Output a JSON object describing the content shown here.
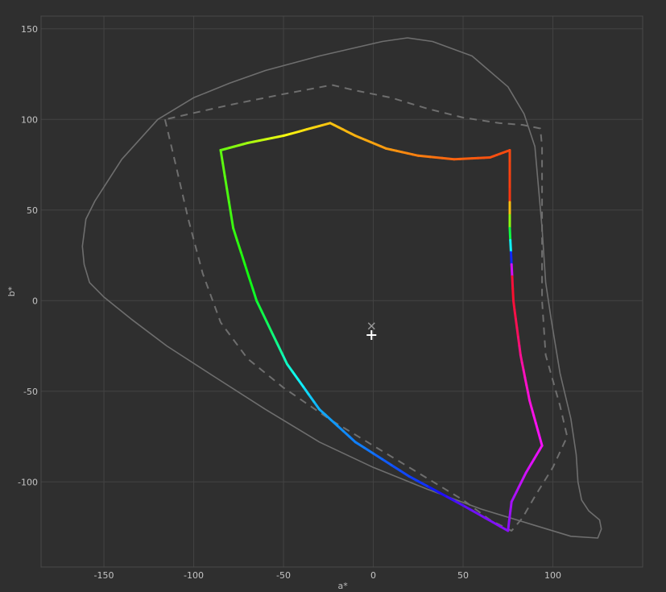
{
  "chart_data": {
    "type": "line",
    "title": "",
    "xlabel": "a*",
    "ylabel": "b*",
    "xlim": [
      -185,
      150
    ],
    "ylim": [
      -147,
      157
    ],
    "xticks": [
      -150,
      -100,
      -50,
      0,
      50,
      100
    ],
    "yticks": [
      150,
      100,
      50,
      0,
      -50,
      -100
    ],
    "grid": true,
    "colors": {
      "background": "#2f2f2f",
      "grid": "#434343",
      "frame": "#4a4a4a",
      "outline": "#6e6e6e",
      "marker": "#ffffff"
    },
    "series": [
      {
        "style": "solid-thin",
        "closed": true,
        "points": [
          [
            -161,
            20
          ],
          [
            -158,
            10
          ],
          [
            -150,
            2
          ],
          [
            -135,
            -10
          ],
          [
            -115,
            -25
          ],
          [
            -90,
            -41
          ],
          [
            -60,
            -60
          ],
          [
            -30,
            -78
          ],
          [
            0,
            -92
          ],
          [
            30,
            -104
          ],
          [
            60,
            -115
          ],
          [
            90,
            -124
          ],
          [
            110,
            -130
          ],
          [
            125,
            -131
          ],
          [
            127,
            -126
          ],
          [
            126,
            -121
          ],
          [
            120,
            -116
          ],
          [
            116,
            -110
          ],
          [
            114,
            -100
          ],
          [
            113,
            -85
          ],
          [
            110,
            -65
          ],
          [
            104,
            -40
          ],
          [
            99,
            -10
          ],
          [
            96,
            10
          ],
          [
            94,
            40
          ],
          [
            90,
            85
          ],
          [
            84,
            103
          ],
          [
            75,
            118
          ],
          [
            55,
            135
          ],
          [
            33,
            143
          ],
          [
            19,
            145
          ],
          [
            5,
            143
          ],
          [
            -30,
            135
          ],
          [
            -60,
            127
          ],
          [
            -80,
            120
          ],
          [
            -100,
            112
          ],
          [
            -120,
            100
          ],
          [
            -140,
            78
          ],
          [
            -155,
            55
          ],
          [
            -160,
            45
          ],
          [
            -162,
            30
          ]
        ]
      },
      {
        "style": "dashed",
        "closed": false,
        "points": [
          [
            -116,
            100
          ],
          [
            -110,
            75
          ],
          [
            -103,
            45
          ],
          [
            -95,
            15
          ],
          [
            -85,
            -12
          ],
          [
            -70,
            -32
          ],
          [
            -50,
            -48
          ],
          [
            -25,
            -65
          ],
          [
            0,
            -80
          ],
          [
            25,
            -95
          ],
          [
            50,
            -110
          ],
          [
            65,
            -121
          ],
          [
            77,
            -127
          ],
          [
            83,
            -120
          ],
          [
            90,
            -108
          ],
          [
            100,
            -92
          ],
          [
            108,
            -75
          ],
          [
            104,
            -58
          ],
          [
            96,
            -30
          ],
          [
            94,
            0
          ],
          [
            94,
            40
          ],
          [
            94,
            85
          ],
          [
            93,
            95
          ],
          [
            83,
            97
          ],
          [
            70,
            98
          ],
          [
            50,
            101
          ],
          [
            30,
            106
          ],
          [
            10,
            112
          ],
          [
            -10,
            116
          ],
          [
            -23,
            119
          ],
          [
            -50,
            114
          ],
          [
            -80,
            108
          ],
          [
            -116,
            100
          ]
        ]
      },
      {
        "style": "rainbow",
        "closed": true,
        "points": [
          [
            -85,
            83
          ],
          [
            -70,
            87
          ],
          [
            -50,
            91
          ],
          [
            -24,
            98
          ],
          [
            -10,
            91
          ],
          [
            7,
            84
          ],
          [
            25,
            80
          ],
          [
            45,
            78
          ],
          [
            65,
            79
          ],
          [
            76,
            83
          ],
          [
            76,
            40
          ],
          [
            78,
            0
          ],
          [
            82,
            -30
          ],
          [
            87,
            -55
          ],
          [
            94,
            -80
          ],
          [
            85,
            -95
          ],
          [
            77,
            -111
          ],
          [
            75,
            -127
          ],
          [
            50,
            -113
          ],
          [
            20,
            -97
          ],
          [
            -10,
            -78
          ],
          [
            -30,
            -60
          ],
          [
            -48,
            -35
          ],
          [
            -65,
            0
          ],
          [
            -78,
            40
          ],
          [
            -85,
            83
          ]
        ]
      }
    ],
    "markers": [
      {
        "shape": "cross",
        "x": -1,
        "y": -14
      },
      {
        "shape": "plus",
        "x": -1,
        "y": -19
      }
    ]
  }
}
